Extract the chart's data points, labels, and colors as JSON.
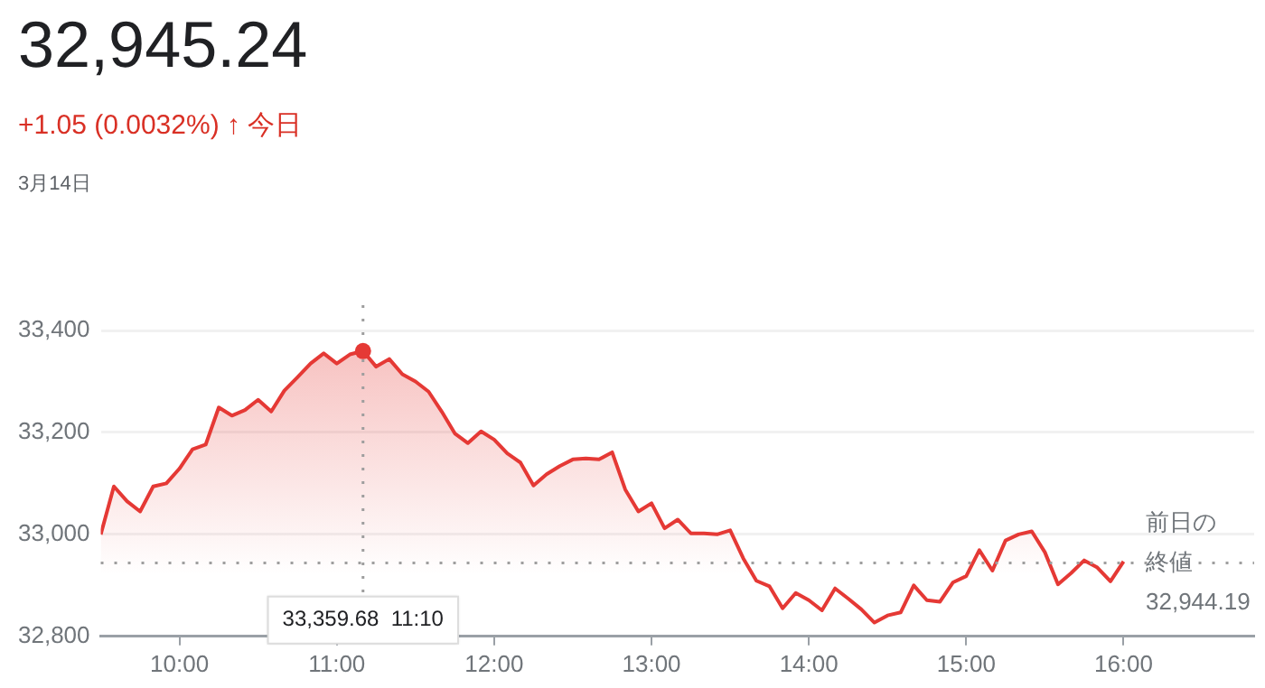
{
  "chart_data": {
    "type": "area",
    "title": "32,945.24",
    "subtitle": "+1.05 (0.0032%) ↑ 今日",
    "annotations": [
      "3月14日"
    ],
    "xlim": [
      9.5,
      16.83
    ],
    "ylim": [
      32800,
      33400
    ],
    "xticks": [
      {
        "value": 10,
        "label": "10:00"
      },
      {
        "value": 11,
        "label": "11:00"
      },
      {
        "value": 12,
        "label": "12:00"
      },
      {
        "value": 13,
        "label": "13:00"
      },
      {
        "value": 14,
        "label": "14:00"
      },
      {
        "value": 15,
        "label": "15:00"
      },
      {
        "value": 16,
        "label": "16:00"
      }
    ],
    "yticks": [
      {
        "value": 32800,
        "label": "32,800"
      },
      {
        "value": 33000,
        "label": "33,000"
      },
      {
        "value": 33200,
        "label": "33,200"
      },
      {
        "value": 33400,
        "label": "33,400"
      }
    ],
    "grid": "y",
    "ref_lines": [
      {
        "axis": "x",
        "value": 11.1667,
        "label": "33,359.68  11:10",
        "color": "#9e9e9e",
        "line_style": "dotted"
      },
      {
        "axis": "y",
        "value": 32944.19,
        "label": "前日の終値 32,944.19",
        "color": "#9e9e9e",
        "line_style": "dotted"
      }
    ],
    "series": [
      {
        "color": "#e53935",
        "x": [
          9.5,
          9.5833,
          9.6667,
          9.75,
          9.8333,
          9.9167,
          10,
          10.0833,
          10.1667,
          10.25,
          10.3333,
          10.4167,
          10.5,
          10.5833,
          10.6667,
          10.75,
          10.8333,
          10.9167,
          11,
          11.0833,
          11.1667,
          11.25,
          11.3333,
          11.4167,
          11.5,
          11.5833,
          11.6667,
          11.75,
          11.8333,
          11.9167,
          12,
          12.0833,
          12.1667,
          12.25,
          12.3333,
          12.4167,
          12.5,
          12.5833,
          12.6667,
          12.75,
          12.8333,
          12.9167,
          13,
          13.0833,
          13.1667,
          13.25,
          13.3333,
          13.4167,
          13.5,
          13.5833,
          13.6667,
          13.75,
          13.8333,
          13.9167,
          14,
          14.0833,
          14.1667,
          14.25,
          14.3333,
          14.4167,
          14.5,
          14.5833,
          14.6667,
          14.75,
          14.8333,
          14.9167,
          15,
          15.0833,
          15.1667,
          15.25,
          15.3333,
          15.4167,
          15.5,
          15.5833,
          15.6667,
          15.75,
          15.8333,
          15.9167,
          16
        ],
        "values": [
          33000,
          33094,
          33065,
          33045,
          33094,
          33100,
          33129,
          33167,
          33176,
          33249,
          33233,
          33244,
          33264,
          33241,
          33282,
          33308,
          33335,
          33355,
          33335,
          33353,
          33359.68,
          33329,
          33344,
          33314,
          33300,
          33280,
          33241,
          33198,
          33179,
          33202,
          33186,
          33159,
          33141,
          33096,
          33118,
          33134,
          33147,
          33149,
          33147,
          33161,
          33088,
          33045,
          33061,
          33012,
          33029,
          33002,
          33002,
          33000,
          33008,
          32953,
          32909,
          32898,
          32855,
          32885,
          32871,
          32851,
          32894,
          32874,
          32853,
          32827,
          32841,
          32847,
          32900,
          32871,
          32868,
          32906,
          32918,
          32969,
          32929,
          32988,
          33000,
          33006,
          32965,
          32902,
          32924,
          32949,
          32935,
          32908,
          32947
        ]
      }
    ]
  }
}
